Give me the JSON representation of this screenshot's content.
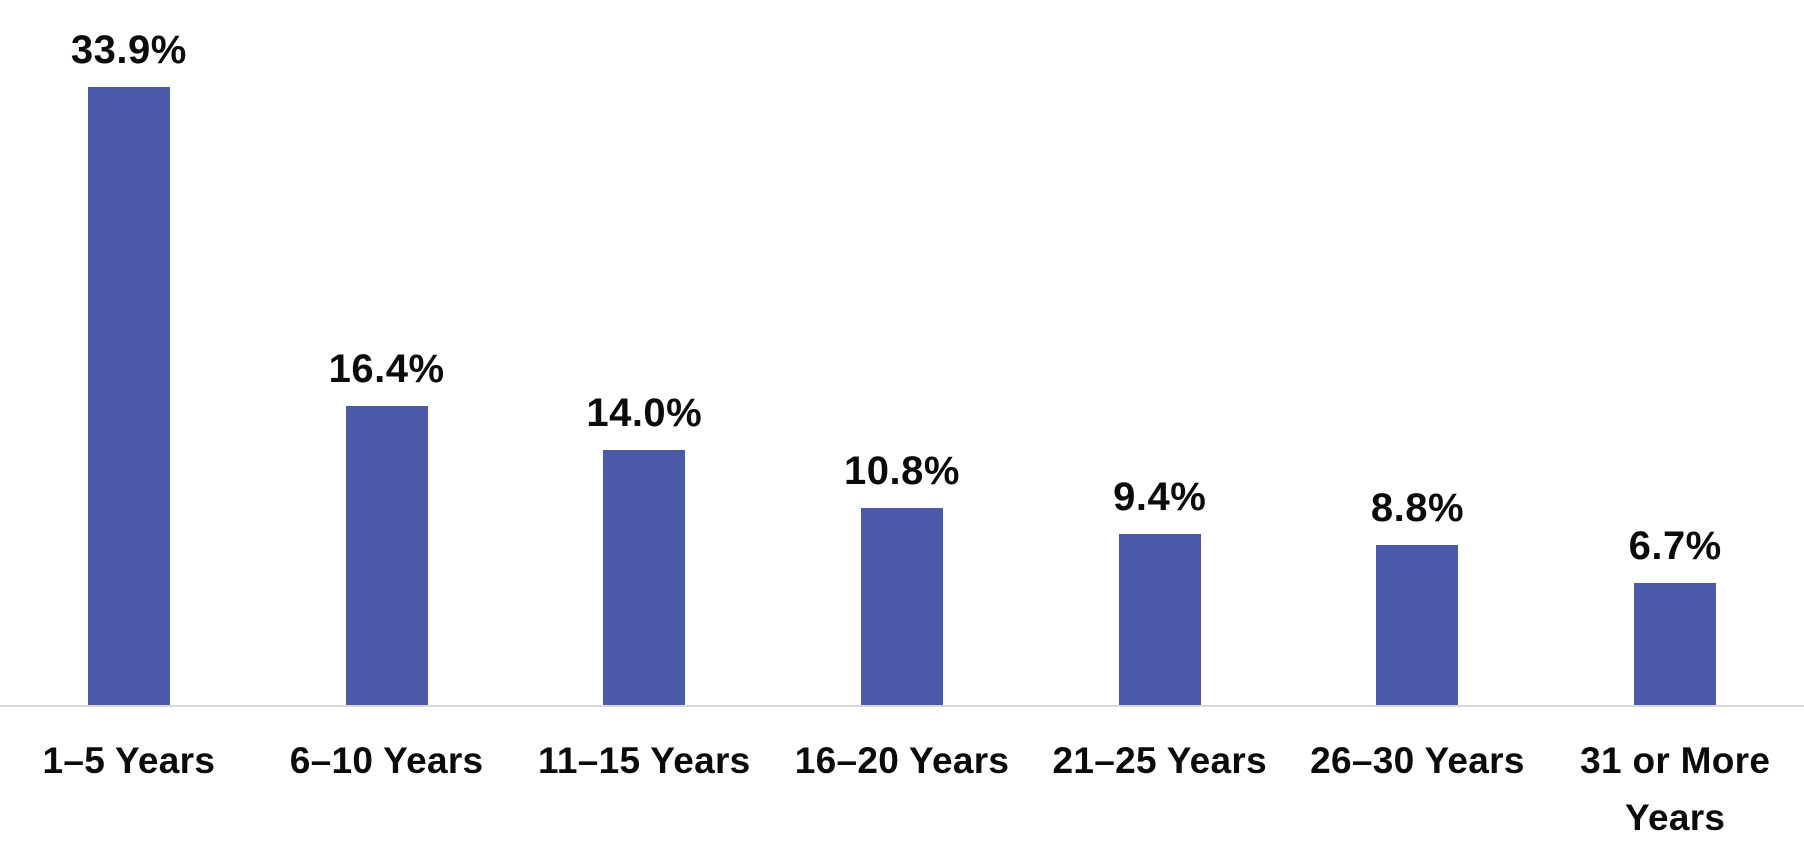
{
  "chart_data": {
    "type": "bar",
    "title": "",
    "xlabel": "",
    "ylabel": "",
    "categories": [
      "1–5 Years",
      "6–10 Years",
      "11–15 Years",
      "16–20 Years",
      "21–25 Years",
      "26–30 Years",
      "31 or More Years"
    ],
    "values": [
      33.9,
      16.4,
      14.0,
      10.8,
      9.4,
      8.8,
      6.7
    ],
    "value_labels": [
      "33.9%",
      "16.4%",
      "14.0%",
      "10.8%",
      "9.4%",
      "8.8%",
      "6.7%"
    ],
    "ylim": [
      0,
      35
    ],
    "grid": false,
    "legend": false,
    "bar_color": "#4a5aa8",
    "baseline_color": "#d9d9d9",
    "text_color": "#0b0b0b",
    "background_color": "#ffffff"
  }
}
